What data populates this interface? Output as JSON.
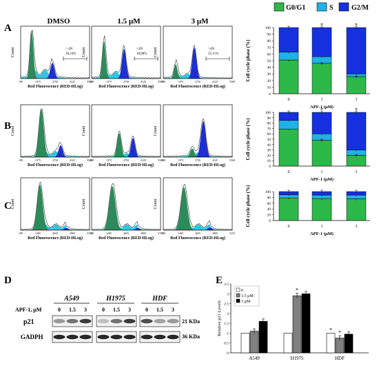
{
  "legend": {
    "entries": [
      {
        "label": "G0/G1",
        "color": "#2db84a"
      },
      {
        "label": "S",
        "color": "#1fb2e6"
      },
      {
        "label": "G2/M",
        "color": "#1630e0"
      }
    ]
  },
  "panel_letters": [
    "A",
    "B",
    "C",
    "D",
    "E"
  ],
  "columns": [
    "DMSO",
    "1.5 µM",
    "3 µM"
  ],
  "histograms": {
    "xlabel": "Red Fluorescence (RED-HLog)",
    "ylabel": "Count",
    "ticks_x": [
      "199",
      "1375",
      "2750",
      "4125",
      "5500"
    ],
    "ticks_c": [
      "199",
      "1405",
      "2655",
      "3905",
      "5155"
    ],
    "annotations_A": [
      [
        "> 4N",
        "18,24%"
      ],
      [
        ">4N",
        "18,88%"
      ],
      [
        ">4N",
        "25,11%"
      ]
    ]
  },
  "cell_cycle": {
    "ylabel": "Cell cycle phase (%)",
    "xlabel": "APF-1 (µM)",
    "categories": [
      "0",
      "1",
      "3"
    ],
    "yticks": [
      "0",
      "10",
      "20",
      "30",
      "40",
      "50",
      "60",
      "70",
      "80",
      "90",
      "100"
    ]
  },
  "western": {
    "treatment_label": "APF-1, µM",
    "cell_lines": [
      "A549",
      "H1975",
      "HDF"
    ],
    "doses": [
      "0",
      "1.5",
      "3"
    ],
    "rows": [
      {
        "name": "p21",
        "size": "21 KDa"
      },
      {
        "name": "GADPH",
        "size": "36 KDa"
      }
    ]
  },
  "chart_data": [
    {
      "type": "bar",
      "panel": "A",
      "categories": [
        "0",
        "1",
        "3"
      ],
      "series": [
        {
          "name": "G0/G1",
          "values": [
            51,
            46,
            26
          ]
        },
        {
          "name": "S",
          "values": [
            12,
            10,
            4
          ]
        },
        {
          "name": "G2/M",
          "values": [
            37,
            44,
            70
          ]
        }
      ],
      "ylabel": "Cell cycle phase (%)",
      "xlabel": "APF-1 (µM)",
      "ylim": [
        0,
        100
      ],
      "significant": [
        false,
        true,
        true
      ]
    },
    {
      "type": "bar",
      "panel": "B",
      "categories": [
        "0",
        "1",
        "3"
      ],
      "series": [
        {
          "name": "G0/G1",
          "values": [
            69,
            48,
            20
          ]
        },
        {
          "name": "S",
          "values": [
            16,
            12,
            10
          ]
        },
        {
          "name": "G2/M",
          "values": [
            15,
            40,
            70
          ]
        }
      ],
      "ylabel": "Cell cycle phase (%)",
      "xlabel": "APF-1 (µM)",
      "ylim": [
        0,
        100
      ],
      "significant": [
        false,
        true,
        true
      ]
    },
    {
      "type": "bar",
      "panel": "C",
      "categories": [
        "0",
        "1",
        "3"
      ],
      "series": [
        {
          "name": "G0/G1",
          "values": [
            78,
            76,
            75
          ]
        },
        {
          "name": "S",
          "values": [
            11,
            12,
            13
          ]
        },
        {
          "name": "G2/M",
          "values": [
            11,
            12,
            12
          ]
        }
      ],
      "ylabel": "Cell cycle phase (%)",
      "xlabel": "APF-1 (µM)",
      "ylim": [
        0,
        100
      ],
      "significant": [
        false,
        false,
        false
      ]
    },
    {
      "type": "bar",
      "panel": "E",
      "categories": [
        "A549",
        "H1975",
        "HDF"
      ],
      "series": [
        {
          "name": "0",
          "values": [
            1.0,
            1.0,
            1.0
          ]
        },
        {
          "name": "1.5 µM",
          "values": [
            1.1,
            2.9,
            0.75
          ]
        },
        {
          "name": "3 µM",
          "values": [
            1.6,
            3.0,
            0.95
          ]
        }
      ],
      "ylabel": "Relative p21 Levels",
      "ylim": [
        0,
        3.5
      ],
      "yticks": [
        "0",
        "0.5",
        "1",
        "1.5",
        "2",
        "2.5",
        "3",
        "3.5"
      ],
      "significant": [
        [
          false,
          false,
          true
        ],
        [
          false,
          true,
          true
        ],
        [
          false,
          false,
          false
        ]
      ]
    }
  ]
}
